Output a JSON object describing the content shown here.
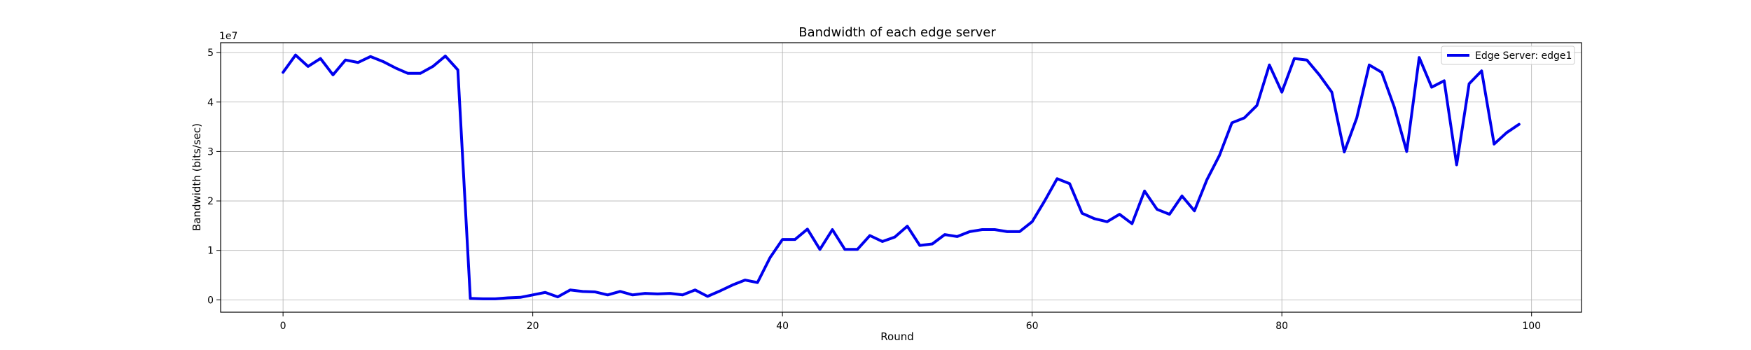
{
  "chart_data": {
    "type": "line",
    "title": "Bandwidth of  each edge server",
    "xlabel": "Round",
    "ylabel": "Bandwidth (bits/sec)",
    "y_offset_label": "1e7",
    "xlim": [
      -5,
      104
    ],
    "ylim": [
      -0.25,
      5.2
    ],
    "y_scale_note": "values in units of 1e7 bits/sec",
    "xticks": [
      0,
      20,
      40,
      60,
      80,
      100
    ],
    "xtick_labels": [
      "0",
      "20",
      "40",
      "60",
      "80",
      "100"
    ],
    "yticks": [
      0,
      1,
      2,
      3,
      4,
      5
    ],
    "ytick_labels": [
      "0",
      "1",
      "2",
      "3",
      "4",
      "5"
    ],
    "grid": true,
    "legend_position": "top-right",
    "series": [
      {
        "name": "Edge Server: edge1",
        "color": "#0000ee",
        "x": [
          0,
          1,
          2,
          3,
          4,
          5,
          6,
          7,
          8,
          9,
          10,
          11,
          12,
          13,
          14,
          15,
          16,
          17,
          18,
          19,
          20,
          21,
          22,
          23,
          24,
          25,
          26,
          27,
          28,
          29,
          30,
          31,
          32,
          33,
          34,
          35,
          36,
          37,
          38,
          39,
          40,
          41,
          42,
          43,
          44,
          45,
          46,
          47,
          48,
          49,
          50,
          51,
          52,
          53,
          54,
          55,
          56,
          57,
          58,
          59,
          60,
          61,
          62,
          63,
          64,
          65,
          66,
          67,
          68,
          69,
          70,
          71,
          72,
          73,
          74,
          75,
          76,
          77,
          78,
          79,
          80,
          81,
          82,
          83,
          84,
          85,
          86,
          87,
          88,
          89,
          90,
          91,
          92,
          93,
          94,
          95,
          96,
          97,
          98,
          99
        ],
        "values": [
          4.6,
          4.95,
          4.72,
          4.88,
          4.55,
          4.85,
          4.8,
          4.92,
          4.82,
          4.69,
          4.58,
          4.58,
          4.72,
          4.93,
          4.65,
          0.03,
          0.02,
          0.02,
          0.04,
          0.05,
          0.1,
          0.15,
          0.06,
          0.2,
          0.17,
          0.16,
          0.1,
          0.17,
          0.1,
          0.13,
          0.12,
          0.13,
          0.1,
          0.2,
          0.07,
          0.18,
          0.3,
          0.4,
          0.35,
          0.85,
          1.22,
          1.22,
          1.43,
          1.02,
          1.42,
          1.02,
          1.02,
          1.3,
          1.18,
          1.27,
          1.49,
          1.1,
          1.13,
          1.32,
          1.28,
          1.38,
          1.42,
          1.42,
          1.38,
          1.38,
          1.58,
          2.0,
          2.45,
          2.35,
          1.75,
          1.64,
          1.58,
          1.73,
          1.54,
          2.2,
          1.83,
          1.73,
          2.1,
          1.8,
          2.43,
          2.92,
          3.58,
          3.68,
          3.93,
          4.75,
          4.2,
          4.88,
          4.85,
          4.55,
          4.2,
          2.99,
          3.68,
          4.75,
          4.6,
          3.9,
          3.0,
          4.9,
          4.3,
          4.43,
          2.73,
          4.37,
          4.63,
          3.15,
          3.38,
          3.55
        ]
      }
    ]
  }
}
